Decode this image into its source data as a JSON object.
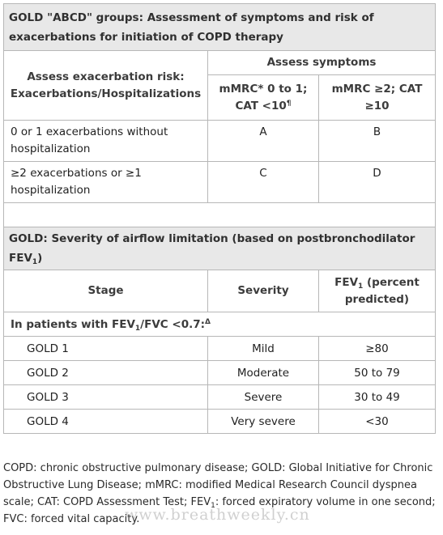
{
  "abcd": {
    "title": "GOLD \"ABCD\" groups: Assessment of symptoms and risk of exacerbations for initiation of COPD therapy",
    "risk_header": "Assess exacerbation risk: Exacerbations/Hospitalizations",
    "symptoms_header": "Assess symptoms",
    "col1": {
      "text": "mMRC* 0 to 1; CAT <10",
      "mark": "¶"
    },
    "col2": "mMRC ≥2; CAT ≥10",
    "rows": [
      {
        "label": "0 or 1 exacerbations without hospitalization",
        "a": "A",
        "b": "B"
      },
      {
        "label": "≥2 exacerbations or ≥1 hospitalization",
        "a": "C",
        "b": "D"
      }
    ]
  },
  "severity": {
    "title_pre": "GOLD: Severity of airflow limitation (based on postbronchodilator FEV",
    "title_sub": "1",
    "title_post": ")",
    "col_stage": "Stage",
    "col_severity": "Severity",
    "col_fev_pre": "FEV",
    "col_fev_sub": "1",
    "col_fev_post": " (percent predicted)",
    "condition": {
      "pre": "In patients with FEV",
      "sub": "1",
      "post": "/FVC <0.7:",
      "mark": "Δ"
    },
    "rows": [
      {
        "stage": "GOLD 1",
        "severity": "Mild",
        "fev": "≥80"
      },
      {
        "stage": "GOLD 2",
        "severity": "Moderate",
        "fev": "50 to 79"
      },
      {
        "stage": "GOLD 3",
        "severity": "Severe",
        "fev": "30 to 49"
      },
      {
        "stage": "GOLD 4",
        "severity": "Very severe",
        "fev": "<30"
      }
    ]
  },
  "footer": {
    "pre": "COPD: chronic obstructive pulmonary disease; GOLD: Global Initiative for Chronic Obstructive Lung Disease; mMRC: modified Medical Research Council dyspnea scale; CAT: COPD Assessment Test; FEV",
    "sub": "1",
    "post": ": forced expiratory volume in one second; FVC: forced vital capacity."
  },
  "watermark": "www.breathweekly.cn"
}
